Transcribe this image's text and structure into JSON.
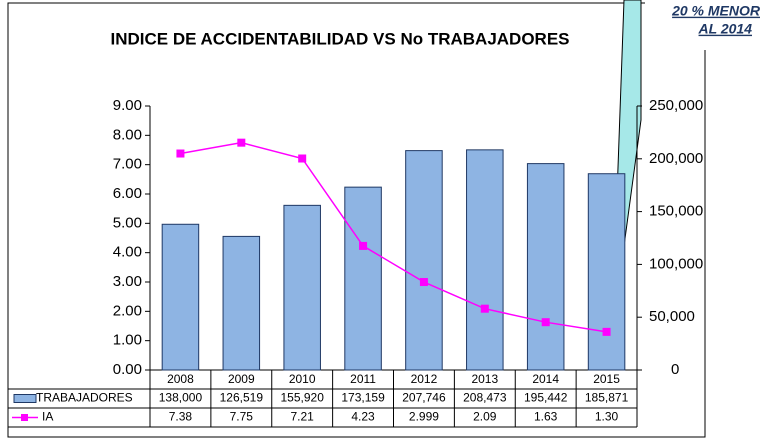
{
  "chart_data": {
    "type": "bar",
    "title": "INDICE DE ACCIDENTABILIDAD  VS No  TRABAJADORES",
    "categories": [
      "2008",
      "2009",
      "2010",
      "2011",
      "2012",
      "2013",
      "2014",
      "2015"
    ],
    "series": [
      {
        "name": "TRABAJADORES",
        "type": "bar",
        "axis": "y2",
        "color": "#8eb4e3",
        "values": [
          138000,
          126519,
          155920,
          173159,
          207746,
          208473,
          195442,
          185871
        ],
        "value_labels": [
          "138,000",
          "126,519",
          "155,920",
          "173,159",
          "207,746",
          "208,473",
          "195,442",
          "185,871"
        ]
      },
      {
        "name": "IA",
        "type": "line",
        "axis": "y",
        "color": "#ff00ff",
        "values": [
          7.38,
          7.75,
          7.21,
          4.23,
          2.999,
          2.09,
          1.63,
          1.3
        ],
        "value_labels": [
          "7.38",
          "7.75",
          "7.21",
          "4.23",
          "2.999",
          "2.09",
          "1.63",
          "1.30"
        ]
      }
    ],
    "ylim": [
      0,
      9
    ],
    "yticks": [
      {
        "value": 0,
        "label": "0.00"
      },
      {
        "value": 1,
        "label": "1.00"
      },
      {
        "value": 2,
        "label": "2.00"
      },
      {
        "value": 3,
        "label": "3.00"
      },
      {
        "value": 4,
        "label": "4.00"
      },
      {
        "value": 5,
        "label": "5.00"
      },
      {
        "value": 6,
        "label": "6.00"
      },
      {
        "value": 7,
        "label": "7.00"
      },
      {
        "value": 8,
        "label": "8.00"
      },
      {
        "value": 9,
        "label": "9.00"
      }
    ],
    "y2lim": [
      0,
      250000
    ],
    "y2ticks": [
      0,
      {
        "value": 50000,
        "label": "50,000"
      },
      {
        "value": 100000,
        "label": "100,000"
      },
      {
        "value": 150000,
        "label": "150,000"
      },
      {
        "value": 200000,
        "label": "200,000"
      },
      {
        "value": 250000,
        "label": "250,000"
      }
    ],
    "annotation": [
      "20 % MENOR",
      "AL 2014"
    ]
  }
}
